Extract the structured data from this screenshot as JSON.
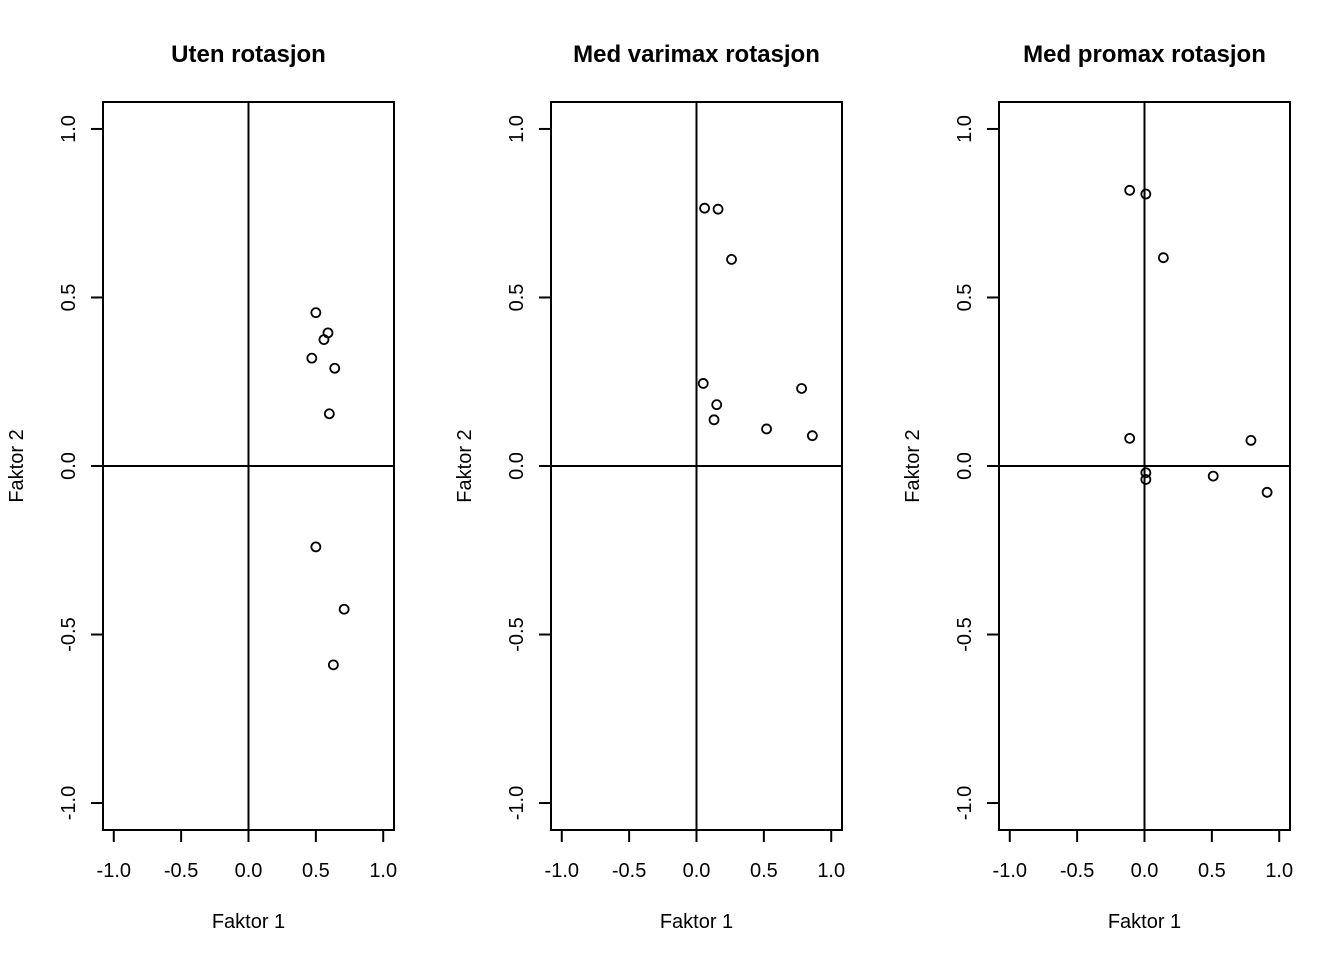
{
  "chart_data": [
    {
      "type": "scatter",
      "title": "Uten rotasjon",
      "xlabel": "Faktor 1",
      "ylabel": "Faktor 2",
      "xlim": [
        -1.0,
        1.0
      ],
      "ylim": [
        -1.0,
        1.0
      ],
      "xticks": [
        "-1.0",
        "-0.5",
        "0.0",
        "0.5",
        "1.0"
      ],
      "yticks": [
        "-1.0",
        "-0.5",
        "0.0",
        "0.5",
        "1.0"
      ],
      "reference_lines": {
        "x": 0,
        "y": 0
      },
      "grid": false,
      "points": [
        {
          "x": 0.5,
          "y": 0.455
        },
        {
          "x": 0.59,
          "y": 0.395
        },
        {
          "x": 0.56,
          "y": 0.375
        },
        {
          "x": 0.47,
          "y": 0.32
        },
        {
          "x": 0.64,
          "y": 0.29
        },
        {
          "x": 0.6,
          "y": 0.155
        },
        {
          "x": 0.5,
          "y": -0.24
        },
        {
          "x": 0.71,
          "y": -0.425
        },
        {
          "x": 0.63,
          "y": -0.59
        }
      ]
    },
    {
      "type": "scatter",
      "title": "Med varimax rotasjon",
      "xlabel": "Faktor 1",
      "ylabel": "Faktor 2",
      "xlim": [
        -1.0,
        1.0
      ],
      "ylim": [
        -1.0,
        1.0
      ],
      "xticks": [
        "-1.0",
        "-0.5",
        "0.0",
        "0.5",
        "1.0"
      ],
      "yticks": [
        "-1.0",
        "-0.5",
        "0.0",
        "0.5",
        "1.0"
      ],
      "reference_lines": {
        "x": 0,
        "y": 0
      },
      "grid": false,
      "points": [
        {
          "x": 0.06,
          "y": 0.765
        },
        {
          "x": 0.16,
          "y": 0.762
        },
        {
          "x": 0.26,
          "y": 0.613
        },
        {
          "x": 0.05,
          "y": 0.245
        },
        {
          "x": 0.78,
          "y": 0.23
        },
        {
          "x": 0.15,
          "y": 0.182
        },
        {
          "x": 0.13,
          "y": 0.137
        },
        {
          "x": 0.52,
          "y": 0.11
        },
        {
          "x": 0.86,
          "y": 0.09
        }
      ]
    },
    {
      "type": "scatter",
      "title": "Med promax rotasjon",
      "xlabel": "Faktor 1",
      "ylabel": "Faktor 2",
      "xlim": [
        -1.0,
        1.0
      ],
      "ylim": [
        -1.0,
        1.0
      ],
      "xticks": [
        "-1.0",
        "-0.5",
        "0.0",
        "0.5",
        "1.0"
      ],
      "yticks": [
        "-1.0",
        "-0.5",
        "0.0",
        "0.5",
        "1.0"
      ],
      "reference_lines": {
        "x": 0,
        "y": 0
      },
      "grid": false,
      "points": [
        {
          "x": -0.11,
          "y": 0.818
        },
        {
          "x": 0.01,
          "y": 0.807
        },
        {
          "x": 0.14,
          "y": 0.618
        },
        {
          "x": -0.11,
          "y": 0.082
        },
        {
          "x": 0.79,
          "y": 0.076
        },
        {
          "x": 0.01,
          "y": -0.02
        },
        {
          "x": 0.01,
          "y": -0.04
        },
        {
          "x": 0.51,
          "y": -0.03
        },
        {
          "x": 0.91,
          "y": -0.078
        }
      ]
    }
  ]
}
